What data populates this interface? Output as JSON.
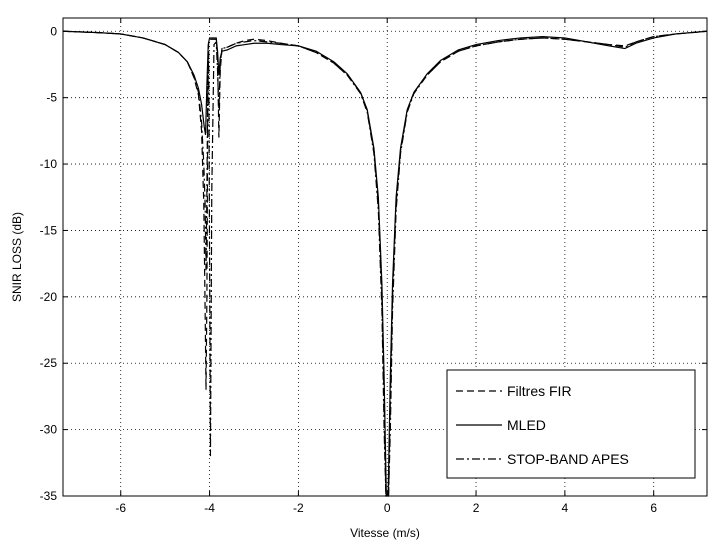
{
  "chart_data": {
    "type": "line",
    "title": "",
    "xlabel": "Vitesse (m/s)",
    "ylabel": "SNIR LOSS (dB)",
    "xlim": [
      -7.3,
      7.2
    ],
    "ylim": [
      -35,
      1
    ],
    "xticks": [
      -6,
      -4,
      -2,
      0,
      2,
      4,
      6
    ],
    "xtick_labels": [
      "-6",
      "-4",
      "-2",
      "0",
      "2",
      "4",
      "6"
    ],
    "yticks": [
      0,
      -5,
      -10,
      -15,
      -20,
      -25,
      -30,
      -35
    ],
    "ytick_labels": [
      "0",
      "-5",
      "-10",
      "-15",
      "-20",
      "-25",
      "-30",
      "-35"
    ],
    "grid": true,
    "legend_position": "bottom-right",
    "series": [
      {
        "name": "Filtres FIR",
        "style": "dashed",
        "color": "#000000",
        "points": [
          [
            -7.3,
            0
          ],
          [
            -6.5,
            -0.1
          ],
          [
            -6,
            -0.2
          ],
          [
            -5.5,
            -0.5
          ],
          [
            -5,
            -1.0
          ],
          [
            -4.7,
            -1.6
          ],
          [
            -4.5,
            -2.3
          ],
          [
            -4.35,
            -3.5
          ],
          [
            -4.25,
            -4.8
          ],
          [
            -4.18,
            -7.5
          ],
          [
            -4.13,
            -13
          ],
          [
            -4.1,
            -21
          ],
          [
            -4.08,
            -27
          ],
          [
            -4.06,
            -20
          ],
          [
            -4.04,
            -5
          ],
          [
            -4.02,
            -0.6
          ],
          [
            -3.85,
            -0.6
          ],
          [
            -3.82,
            -2
          ],
          [
            -3.79,
            -8
          ],
          [
            -3.76,
            -3
          ],
          [
            -3.72,
            -1.3
          ],
          [
            -3.6,
            -1.2
          ],
          [
            -3.4,
            -0.9
          ],
          [
            -3.2,
            -0.7
          ],
          [
            -3.0,
            -0.6
          ],
          [
            -2.7,
            -0.7
          ],
          [
            -2.4,
            -0.9
          ],
          [
            -2.0,
            -1.1
          ],
          [
            -1.6,
            -1.6
          ],
          [
            -1.2,
            -2.4
          ],
          [
            -0.9,
            -3.3
          ],
          [
            -0.6,
            -4.6
          ],
          [
            -0.45,
            -6.0
          ],
          [
            -0.3,
            -9
          ],
          [
            -0.2,
            -13
          ],
          [
            -0.12,
            -20
          ],
          [
            -0.07,
            -28
          ],
          [
            -0.03,
            -35
          ],
          [
            0.03,
            -35
          ],
          [
            0.07,
            -28
          ],
          [
            0.12,
            -20
          ],
          [
            0.2,
            -13
          ],
          [
            0.3,
            -9
          ],
          [
            0.45,
            -6.0
          ],
          [
            0.6,
            -4.6
          ],
          [
            0.9,
            -3.3
          ],
          [
            1.2,
            -2.3
          ],
          [
            1.6,
            -1.5
          ],
          [
            2.0,
            -1.1
          ],
          [
            2.5,
            -0.8
          ],
          [
            3.0,
            -0.6
          ],
          [
            3.5,
            -0.5
          ],
          [
            4.0,
            -0.6
          ],
          [
            4.5,
            -0.8
          ],
          [
            5.0,
            -1.0
          ],
          [
            5.35,
            -1.1
          ],
          [
            5.6,
            -0.8
          ],
          [
            6.0,
            -0.4
          ],
          [
            6.5,
            -0.2
          ],
          [
            7.2,
            0
          ]
        ]
      },
      {
        "name": "MLED",
        "style": "solid",
        "color": "#000000",
        "points": [
          [
            -7.3,
            0
          ],
          [
            -6.5,
            -0.1
          ],
          [
            -6,
            -0.2
          ],
          [
            -5.5,
            -0.5
          ],
          [
            -5,
            -1.0
          ],
          [
            -4.7,
            -1.6
          ],
          [
            -4.5,
            -2.3
          ],
          [
            -4.35,
            -3.3
          ],
          [
            -4.25,
            -4.3
          ],
          [
            -4.18,
            -5.5
          ],
          [
            -4.12,
            -7.2
          ],
          [
            -4.09,
            -7.8
          ],
          [
            -4.06,
            -4
          ],
          [
            -4.03,
            -1
          ],
          [
            -4.0,
            -0.5
          ],
          [
            -3.85,
            -0.5
          ],
          [
            -3.82,
            -1.5
          ],
          [
            -3.79,
            -3.3
          ],
          [
            -3.76,
            -2
          ],
          [
            -3.72,
            -1.5
          ],
          [
            -3.6,
            -1.4
          ],
          [
            -3.4,
            -1.1
          ],
          [
            -3.2,
            -1.0
          ],
          [
            -3.0,
            -0.9
          ],
          [
            -2.7,
            -0.9
          ],
          [
            -2.4,
            -1.0
          ],
          [
            -2.0,
            -1.1
          ],
          [
            -1.6,
            -1.5
          ],
          [
            -1.2,
            -2.3
          ],
          [
            -0.9,
            -3.2
          ],
          [
            -0.6,
            -4.6
          ],
          [
            -0.45,
            -5.9
          ],
          [
            -0.3,
            -8.8
          ],
          [
            -0.2,
            -12.5
          ],
          [
            -0.12,
            -19
          ],
          [
            -0.07,
            -26
          ],
          [
            -0.02,
            -35
          ],
          [
            0.02,
            -35
          ],
          [
            0.07,
            -26
          ],
          [
            0.12,
            -19
          ],
          [
            0.2,
            -12.5
          ],
          [
            0.3,
            -8.8
          ],
          [
            0.45,
            -5.9
          ],
          [
            0.6,
            -4.6
          ],
          [
            0.9,
            -3.2
          ],
          [
            1.2,
            -2.2
          ],
          [
            1.6,
            -1.4
          ],
          [
            2.0,
            -1.0
          ],
          [
            2.5,
            -0.7
          ],
          [
            3.0,
            -0.5
          ],
          [
            3.5,
            -0.4
          ],
          [
            4.0,
            -0.5
          ],
          [
            4.5,
            -0.8
          ],
          [
            5.0,
            -1.1
          ],
          [
            5.35,
            -1.3
          ],
          [
            5.6,
            -0.9
          ],
          [
            6.0,
            -0.5
          ],
          [
            6.5,
            -0.2
          ],
          [
            7.2,
            0
          ]
        ]
      },
      {
        "name": "STOP-BAND APES",
        "style": "dashdot",
        "color": "#000000",
        "points": [
          [
            -7.3,
            0
          ],
          [
            -6.5,
            -0.1
          ],
          [
            -6,
            -0.2
          ],
          [
            -5.5,
            -0.5
          ],
          [
            -5,
            -1.0
          ],
          [
            -4.7,
            -1.6
          ],
          [
            -4.5,
            -2.3
          ],
          [
            -4.35,
            -3.4
          ],
          [
            -4.25,
            -4.6
          ],
          [
            -4.18,
            -6.8
          ],
          [
            -4.13,
            -10
          ],
          [
            -4.1,
            -13
          ],
          [
            -4.08,
            -18
          ],
          [
            -4.06,
            -12
          ],
          [
            -4.04,
            -4
          ],
          [
            -4.02,
            -1.5
          ],
          [
            -3.98,
            -32
          ],
          [
            -3.95,
            -12
          ],
          [
            -3.9,
            -1
          ],
          [
            -3.85,
            -0.8
          ],
          [
            -3.82,
            -3
          ],
          [
            -3.79,
            -6
          ],
          [
            -3.76,
            -2.5
          ],
          [
            -3.72,
            -1.3
          ],
          [
            -3.6,
            -1.2
          ],
          [
            -3.4,
            -0.9
          ],
          [
            -3.2,
            -0.8
          ],
          [
            -3.0,
            -0.7
          ],
          [
            -2.7,
            -0.8
          ],
          [
            -2.4,
            -0.9
          ],
          [
            -2.0,
            -1.1
          ],
          [
            -1.6,
            -1.6
          ],
          [
            -1.2,
            -2.4
          ],
          [
            -0.9,
            -3.3
          ],
          [
            -0.6,
            -4.7
          ],
          [
            -0.45,
            -6.1
          ],
          [
            -0.3,
            -9.2
          ],
          [
            -0.2,
            -13.5
          ],
          [
            -0.12,
            -21
          ],
          [
            -0.07,
            -30
          ],
          [
            -0.03,
            -35
          ],
          [
            0.03,
            -35
          ],
          [
            0.07,
            -30
          ],
          [
            0.12,
            -21
          ],
          [
            0.2,
            -13.5
          ],
          [
            0.3,
            -9.2
          ],
          [
            0.45,
            -6.1
          ],
          [
            0.6,
            -4.7
          ],
          [
            0.9,
            -3.3
          ],
          [
            1.2,
            -2.3
          ],
          [
            1.6,
            -1.5
          ],
          [
            2.0,
            -1.1
          ],
          [
            2.5,
            -0.8
          ],
          [
            3.0,
            -0.6
          ],
          [
            3.5,
            -0.5
          ],
          [
            4.0,
            -0.6
          ],
          [
            4.5,
            -0.8
          ],
          [
            5.0,
            -1.0
          ],
          [
            5.35,
            -1.2
          ],
          [
            5.6,
            -0.8
          ],
          [
            6.0,
            -0.4
          ],
          [
            6.5,
            -0.2
          ],
          [
            7.2,
            0
          ]
        ]
      }
    ]
  }
}
